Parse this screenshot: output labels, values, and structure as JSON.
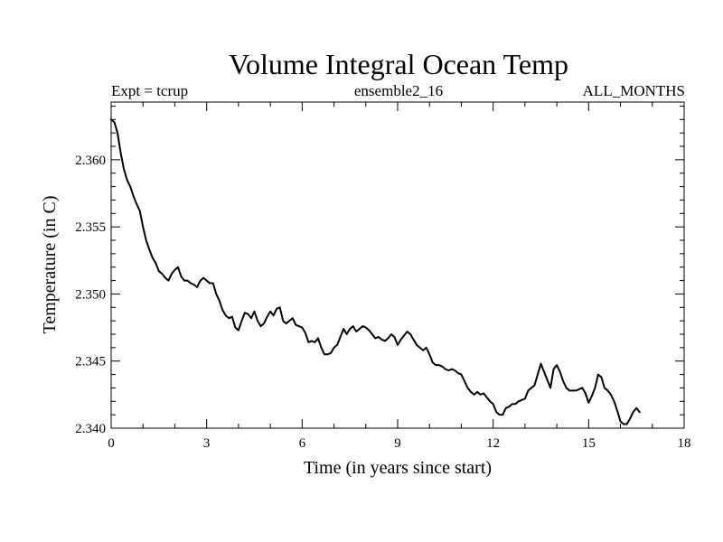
{
  "chart_data": {
    "type": "line",
    "title": "Volume Integral Ocean Temp",
    "subtitle_left": "Expt = tcrup",
    "subtitle_center": "ensemble2_16",
    "subtitle_right": "ALL_MONTHS",
    "xlabel": "Time (in years since start)",
    "ylabel": "Temperature (in C)",
    "xlim": [
      0,
      18
    ],
    "ylim": [
      2.34,
      2.3643
    ],
    "x_ticks": [
      0,
      3,
      6,
      9,
      12,
      15,
      18
    ],
    "x_tick_labels": [
      "0",
      "3",
      "6",
      "9",
      "12",
      "15",
      "18"
    ],
    "y_ticks": [
      2.34,
      2.345,
      2.35,
      2.355,
      2.36
    ],
    "y_tick_labels": [
      "2.340",
      "2.345",
      "2.350",
      "2.355",
      "2.360"
    ],
    "grid": false,
    "series": [
      {
        "name": "Volume Integral Ocean Temp",
        "x": [
          0.0,
          0.1,
          0.2,
          0.3,
          0.4,
          0.5,
          0.6,
          0.7,
          0.8,
          0.9,
          1.0,
          1.1,
          1.2,
          1.3,
          1.4,
          1.5,
          1.6,
          1.7,
          1.8,
          1.9,
          2.0,
          2.1,
          2.2,
          2.3,
          2.4,
          2.5,
          2.6,
          2.7,
          2.8,
          2.9,
          3.0,
          3.1,
          3.2,
          3.3,
          3.4,
          3.5,
          3.6,
          3.7,
          3.8,
          3.9,
          4.0,
          4.1,
          4.2,
          4.3,
          4.4,
          4.5,
          4.6,
          4.7,
          4.8,
          4.9,
          5.0,
          5.1,
          5.2,
          5.3,
          5.4,
          5.5,
          5.6,
          5.7,
          5.8,
          5.9,
          6.0,
          6.1,
          6.2,
          6.3,
          6.4,
          6.5,
          6.6,
          6.7,
          6.8,
          6.9,
          7.0,
          7.1,
          7.2,
          7.3,
          7.4,
          7.5,
          7.6,
          7.7,
          7.8,
          7.9,
          8.0,
          8.1,
          8.2,
          8.3,
          8.4,
          8.5,
          8.6,
          8.7,
          8.8,
          8.9,
          9.0,
          9.1,
          9.2,
          9.3,
          9.4,
          9.5,
          9.6,
          9.7,
          9.8,
          9.9,
          10.0,
          10.1,
          10.2,
          10.3,
          10.4,
          10.5,
          10.6,
          10.7,
          10.8,
          10.9,
          11.0,
          11.1,
          11.2,
          11.3,
          11.4,
          11.5,
          11.6,
          11.7,
          11.8,
          11.9,
          12.0,
          12.1,
          12.2,
          12.3,
          12.4,
          12.5,
          12.6,
          12.7,
          12.8,
          12.9,
          13.0,
          13.1,
          13.2,
          13.3,
          13.4,
          13.5,
          13.6,
          13.7,
          13.8,
          13.9,
          14.0,
          14.1,
          14.2,
          14.3,
          14.4,
          14.5,
          14.6,
          14.7,
          14.8,
          14.9,
          15.0,
          15.1,
          15.2,
          15.3,
          15.4,
          15.5,
          15.6,
          15.7,
          15.8,
          15.9,
          16.0,
          16.1,
          16.2,
          16.3,
          16.4,
          16.5,
          16.6
        ],
        "values": [
          2.363,
          2.3628,
          2.362,
          2.3605,
          2.3593,
          2.3585,
          2.358,
          2.3573,
          2.3567,
          2.3562,
          2.355,
          2.354,
          2.3533,
          2.3527,
          2.3523,
          2.3517,
          2.3515,
          2.3512,
          2.351,
          2.3515,
          2.3518,
          2.352,
          2.3513,
          2.351,
          2.351,
          2.3508,
          2.3507,
          2.3505,
          2.351,
          2.3512,
          2.351,
          2.3508,
          2.3508,
          2.35,
          2.3495,
          2.3488,
          2.3484,
          2.3482,
          2.3483,
          2.3475,
          2.3473,
          2.348,
          2.3486,
          2.3485,
          2.3482,
          2.3487,
          2.348,
          2.3476,
          2.3478,
          2.3483,
          2.3487,
          2.3484,
          2.3489,
          2.349,
          2.348,
          2.3478,
          2.348,
          2.3482,
          2.3477,
          2.3476,
          2.3475,
          2.3471,
          2.3464,
          2.3465,
          2.3464,
          2.3467,
          2.346,
          2.3455,
          2.3455,
          2.3456,
          2.346,
          2.3462,
          2.3468,
          2.3474,
          2.347,
          2.3474,
          2.3476,
          2.3472,
          2.3474,
          2.3476,
          2.3475,
          2.3473,
          2.347,
          2.3467,
          2.3468,
          2.3466,
          2.3465,
          2.3467,
          2.347,
          2.3468,
          2.3462,
          2.3466,
          2.3469,
          2.3472,
          2.347,
          2.3466,
          2.3462,
          2.346,
          2.3458,
          2.346,
          2.3455,
          2.3449,
          2.3447,
          2.3447,
          2.3446,
          2.3444,
          2.3443,
          2.3444,
          2.3443,
          2.3441,
          2.344,
          2.3435,
          2.343,
          2.3427,
          2.3425,
          2.3427,
          2.3425,
          2.3426,
          2.3423,
          2.342,
          2.3418,
          2.3412,
          2.341,
          2.341,
          2.3415,
          2.3416,
          2.3418,
          2.3418,
          2.342,
          2.3421,
          2.3422,
          2.3428,
          2.343,
          2.3432,
          2.344,
          2.3448,
          2.3442,
          2.3436,
          2.343,
          2.3444,
          2.3447,
          2.3442,
          2.3435,
          2.343,
          2.3428,
          2.3428,
          2.3428,
          2.3429,
          2.343,
          2.3426,
          2.3419,
          2.3424,
          2.343,
          2.344,
          2.3438,
          2.343,
          2.3428,
          2.3425,
          2.342,
          2.3413,
          2.3405,
          2.3403,
          2.3403,
          2.3407,
          2.3412,
          2.3415,
          2.3412
        ]
      }
    ]
  }
}
